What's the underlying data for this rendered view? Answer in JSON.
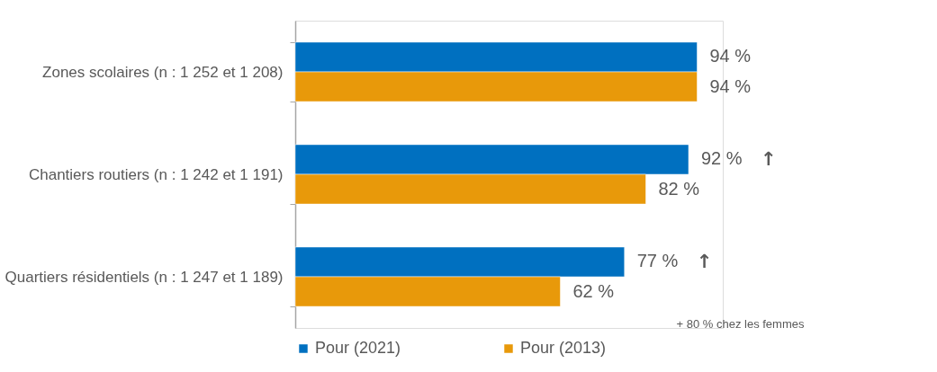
{
  "chart_data": {
    "type": "bar",
    "orientation": "horizontal",
    "categories": [
      "Zones scolaires (n : 1 252 et 1 208)",
      "Chantiers routiers (n : 1 242 et 1 191)",
      "Quartiers résidentiels (n : 1 247 et 1 189)"
    ],
    "series": [
      {
        "name": "Pour (2021)",
        "color": "#0070c0",
        "values": [
          94,
          92,
          77
        ],
        "value_labels": [
          "94 %",
          "92 %",
          "77 %"
        ]
      },
      {
        "name": "Pour (2013)",
        "color": "#e8990a",
        "values": [
          94,
          82,
          62
        ],
        "value_labels": [
          "94 %",
          "82 %",
          "62 %"
        ]
      }
    ],
    "xlim": [
      0,
      100
    ],
    "tick_labels": "y",
    "legend": "bottom",
    "grid": false,
    "annotations": [
      "↑",
      "↑",
      "+ 80 % chez les femmes"
    ]
  }
}
